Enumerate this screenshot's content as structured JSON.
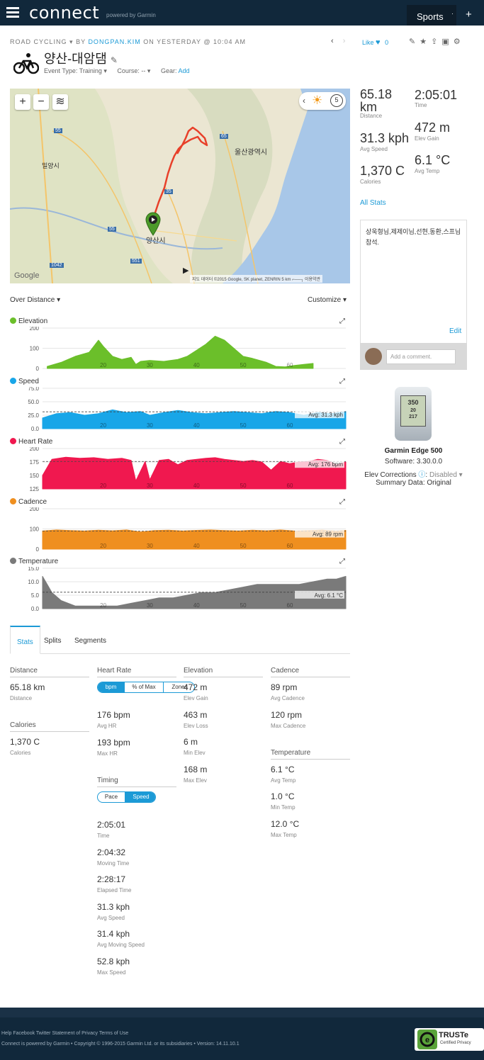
{
  "header": {
    "logo": "connect",
    "powered_by": "powered by Garmin",
    "sports_label": "Sports",
    "sports_caret": "·",
    "plus_label": "+"
  },
  "activity": {
    "type": "ROAD CYCLING",
    "type_caret": "▾",
    "by_label": "BY",
    "author": "DONGPAN.KIM",
    "when": "ON YESTERDAY @ 10:04 AM",
    "title": "양산-대암댐",
    "edit_glyph": "✎",
    "event_type": "Event Type: Training ▾",
    "course": "Course: -- ▾",
    "gear_label": "Gear:",
    "gear_add": "Add",
    "prev": "‹",
    "next": "›",
    "like_label": "Like",
    "like_heart": "♥",
    "like_count": "0"
  },
  "map": {
    "zoom_in": "+",
    "zoom_out": "−",
    "layers_icon": "≋",
    "collapse": "‹",
    "lap_count": "5",
    "weather_glyph": "☀",
    "labels": [
      "밀양시",
      "울산광역시",
      "양산시",
      "Google"
    ],
    "highway_numbers": [
      "55",
      "35",
      "65",
      "55",
      "551",
      "1042"
    ],
    "copyright": "지도 데이터 ©2015 Google, SK planet, ZENRIN   5 km ⌐──┐   이용약관",
    "play_glyph": "▶",
    "marker_glyph": "▶"
  },
  "summary": {
    "distance_value": "65.18 km",
    "distance_label": "Distance",
    "time_value": "2:05:01",
    "time_label": "Time",
    "speed_value": "31.3 kph",
    "speed_label": "Avg Speed",
    "elev_value": "472 m",
    "elev_label": "Elev Gain",
    "calories_value": "1,370 C",
    "calories_label": "Calories",
    "temp_value": "6.1 °C",
    "temp_label": "Avg Temp",
    "all_stats": "All Stats"
  },
  "description": {
    "text": "상욱형님,제제이님,선현,동환,스프님 참석.",
    "edit": "Edit",
    "comment_placeholder": "Add a comment."
  },
  "device": {
    "name": "Garmin Edge 500",
    "software": "Software: 3.30.0.0",
    "elev_corrections_label": "Elev Corrections",
    "elev_corrections_value": "Disabled ▾",
    "summary_data": "Summary Data: Original",
    "screen_readout": [
      "350",
      "20",
      "217"
    ]
  },
  "charts_header": {
    "over_distance": "Over Distance ▾",
    "customize": "Customize ▾",
    "expand_glyph": "⤢"
  },
  "colors": {
    "elevation": "#6bbf2a",
    "speed": "#18a6e8",
    "heart_rate": "#f0184f",
    "cadence": "#ef8f1f",
    "temperature": "#7a7a7a",
    "accent": "#1c9ad6",
    "header_bg": "#11283b"
  },
  "chart_data": [
    {
      "type": "area",
      "title": "Elevation",
      "x": [
        8,
        11,
        14,
        17,
        19,
        20,
        22,
        24,
        26,
        27,
        28,
        30,
        33,
        36,
        38,
        40,
        42,
        44,
        46,
        48,
        50,
        52,
        55,
        57,
        59,
        61,
        63,
        65
      ],
      "y": [
        10,
        30,
        60,
        80,
        140,
        110,
        60,
        45,
        55,
        20,
        35,
        40,
        35,
        45,
        60,
        90,
        120,
        160,
        140,
        100,
        60,
        50,
        30,
        10,
        8,
        15,
        20,
        25
      ],
      "x_ticks": [
        "20",
        "30",
        "40",
        "50",
        "60"
      ],
      "x_tick_values": [
        20,
        30,
        40,
        50,
        60
      ],
      "y_ticks": [
        "0",
        "100",
        "200"
      ],
      "ylim": [
        0,
        200
      ],
      "xlim": [
        7,
        72
      ]
    },
    {
      "type": "area",
      "title": "Speed",
      "x": [
        7,
        10,
        13,
        16,
        19,
        22,
        25,
        28,
        30,
        33,
        36,
        39,
        42,
        45,
        48,
        51,
        54,
        57,
        60,
        63,
        66,
        69,
        72
      ],
      "y": [
        20,
        28,
        30,
        25,
        28,
        35,
        30,
        32,
        25,
        30,
        34,
        30,
        28,
        30,
        32,
        30,
        28,
        32,
        30,
        25,
        30,
        28,
        32
      ],
      "x_ticks": [
        "20",
        "30",
        "40",
        "50",
        "60"
      ],
      "x_tick_values": [
        20,
        30,
        40,
        50,
        60
      ],
      "y_ticks": [
        "0.0",
        "25.0",
        "50.0",
        "75.0"
      ],
      "ylim": [
        0,
        75
      ],
      "xlim": [
        7,
        72
      ],
      "avg_label": "Avg: 31.3 kph",
      "avg_value": 31.3
    },
    {
      "type": "area",
      "title": "Heart Rate",
      "x": [
        7,
        9,
        12,
        15,
        18,
        21,
        24,
        26,
        27,
        29,
        30,
        32,
        34,
        36,
        38,
        40,
        42,
        44,
        46,
        48,
        50,
        52,
        54,
        56,
        58,
        60,
        62,
        64,
        66,
        68,
        70,
        72
      ],
      "y": [
        150,
        180,
        184,
        182,
        183,
        180,
        182,
        178,
        140,
        176,
        142,
        178,
        180,
        170,
        178,
        180,
        182,
        183,
        180,
        178,
        176,
        178,
        175,
        160,
        176,
        172,
        175,
        176,
        180,
        178,
        170,
        175
      ],
      "x_ticks": [
        "20",
        "30",
        "40",
        "50",
        "60"
      ],
      "x_tick_values": [
        20,
        30,
        40,
        50,
        60
      ],
      "y_ticks": [
        "125",
        "150",
        "175",
        "200"
      ],
      "ylim": [
        125,
        200
      ],
      "xlim": [
        7,
        72
      ],
      "avg_label": "Avg: 176 bpm",
      "avg_value": 176
    },
    {
      "type": "area",
      "title": "Cadence",
      "x": [
        7,
        10,
        13,
        16,
        19,
        22,
        25,
        28,
        31,
        34,
        37,
        40,
        43,
        46,
        49,
        52,
        55,
        58,
        61,
        64,
        67,
        70,
        72
      ],
      "y": [
        90,
        95,
        92,
        90,
        94,
        91,
        95,
        85,
        92,
        94,
        90,
        93,
        95,
        92,
        90,
        94,
        91,
        95,
        90,
        92,
        94,
        90,
        93
      ],
      "x_ticks": [
        "20",
        "30",
        "40",
        "50",
        "60"
      ],
      "x_tick_values": [
        20,
        30,
        40,
        50,
        60
      ],
      "y_ticks": [
        "0",
        "100",
        "200"
      ],
      "ylim": [
        0,
        200
      ],
      "xlim": [
        7,
        72
      ],
      "avg_label": "Avg: 89 rpm",
      "avg_value": 89
    },
    {
      "type": "area",
      "title": "Temperature",
      "x": [
        7,
        8,
        9,
        11,
        14,
        17,
        20,
        23,
        26,
        29,
        32,
        35,
        38,
        41,
        44,
        47,
        50,
        53,
        56,
        59,
        62,
        65,
        68,
        70,
        72
      ],
      "y": [
        12,
        9,
        6,
        3,
        1,
        1,
        1,
        1,
        2,
        3,
        4,
        4,
        5,
        6,
        6,
        7,
        8,
        9,
        9,
        9,
        9,
        10,
        11,
        11,
        12
      ],
      "x_ticks": [
        "20",
        "30",
        "40",
        "50",
        "60"
      ],
      "x_tick_values": [
        20,
        30,
        40,
        50,
        60
      ],
      "y_ticks": [
        "0.0",
        "5.0",
        "10.0",
        "15.0"
      ],
      "ylim": [
        0,
        15
      ],
      "xlim": [
        7,
        72
      ],
      "avg_label": "Avg: 6.1 °C",
      "avg_value": 6.1
    }
  ],
  "tabs": [
    "Stats",
    "Splits",
    "Segments"
  ],
  "stats": {
    "distance": {
      "head": "Distance",
      "value": "65.18 km",
      "label": "Distance"
    },
    "calories": {
      "head": "Calories",
      "value": "1,370 C",
      "label": "Calories"
    },
    "heart_rate": {
      "head": "Heart Rate",
      "toggle": [
        "bpm",
        "% of Max",
        "Zones"
      ],
      "items": [
        {
          "value": "176 bpm",
          "label": "Avg HR"
        },
        {
          "value": "193 bpm",
          "label": "Max HR"
        }
      ]
    },
    "timing": {
      "head": "Timing",
      "toggle": [
        "Pace",
        "Speed"
      ],
      "items": [
        {
          "value": "2:05:01",
          "label": "Time"
        },
        {
          "value": "2:04:32",
          "label": "Moving Time"
        },
        {
          "value": "2:28:17",
          "label": "Elapsed Time"
        },
        {
          "value": "31.3 kph",
          "label": "Avg Speed"
        },
        {
          "value": "31.4 kph",
          "label": "Avg Moving Speed"
        },
        {
          "value": "52.8 kph",
          "label": "Max Speed"
        }
      ]
    },
    "elevation": {
      "head": "Elevation",
      "items": [
        {
          "value": "472 m",
          "label": "Elev Gain"
        },
        {
          "value": "463 m",
          "label": "Elev Loss"
        },
        {
          "value": "6 m",
          "label": "Min Elev"
        },
        {
          "value": "168 m",
          "label": "Max Elev"
        }
      ]
    },
    "cadence": {
      "head": "Cadence",
      "items": [
        {
          "value": "89 rpm",
          "label": "Avg Cadence"
        },
        {
          "value": "120 rpm",
          "label": "Max Cadence"
        }
      ]
    },
    "temperature": {
      "head": "Temperature",
      "items": [
        {
          "value": "6.1 °C",
          "label": "Avg Temp"
        },
        {
          "value": "1.0 °C",
          "label": "Min Temp"
        },
        {
          "value": "12.0 °C",
          "label": "Max Temp"
        }
      ]
    }
  },
  "footer": {
    "links": "Help Facebook Twitter Statement of Privacy Terms of Use",
    "copyright": "Connect is powered by Garmin • Copyright © 1996-2015 Garmin Ltd. or its subsidiaries • Version: 14.11.10.1",
    "truste_title": "TRUSTe",
    "truste_sub": "Certified Privacy"
  }
}
